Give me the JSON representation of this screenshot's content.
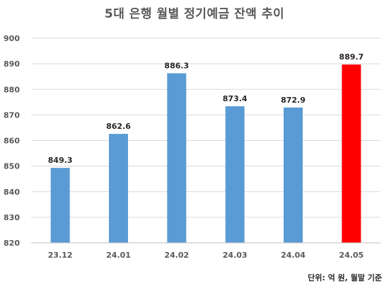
{
  "chart_data": {
    "type": "bar",
    "title": "5대 은행 월별 정기예금 잔액 추이",
    "categories": [
      "23.12",
      "24.01",
      "24.02",
      "24.03",
      "24.04",
      "24.05"
    ],
    "values": [
      849.3,
      862.6,
      886.3,
      873.4,
      872.9,
      889.7
    ],
    "value_labels": [
      "849.3",
      "862.6",
      "886.3",
      "873.4",
      "872.9",
      "889.7"
    ],
    "yticks": [
      "820",
      "830",
      "840",
      "850",
      "860",
      "870",
      "880",
      "890",
      "900"
    ],
    "ylim": [
      820,
      900
    ],
    "grid": true,
    "legend": "none",
    "colors": {
      "default": "#5B9BD5",
      "highlight": "#FF0000",
      "grid": "#D9D9D9",
      "axis": "#BFBFBF"
    },
    "highlight_index": 5,
    "unit_note": "단위: 억 원, 월말 기준"
  }
}
